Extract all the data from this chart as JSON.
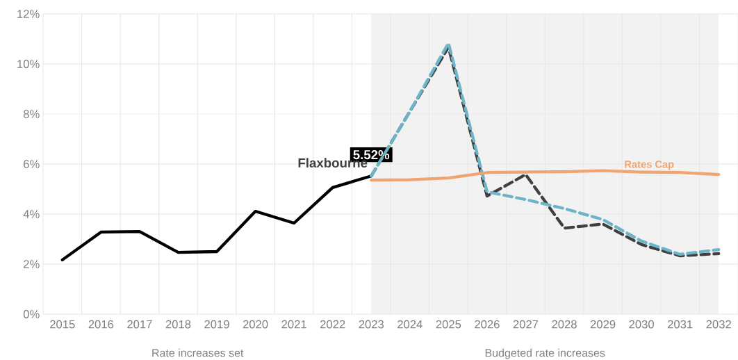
{
  "chart_data": {
    "type": "line",
    "categories": [
      "2015",
      "2016",
      "2017",
      "2018",
      "2019",
      "2020",
      "2021",
      "2022",
      "2023",
      "2024",
      "2025",
      "2026",
      "2027",
      "2028",
      "2029",
      "2030",
      "2031",
      "2032"
    ],
    "series": [
      {
        "color": "#000000",
        "line_style": "solid",
        "values": [
          2.17,
          3.28,
          3.3,
          2.47,
          2.5,
          4.11,
          3.64,
          5.06,
          5.52,
          null,
          null,
          null,
          null,
          null,
          null,
          null,
          null,
          null
        ],
        "value_labels": [
          null,
          null,
          null,
          null,
          null,
          null,
          null,
          null,
          "5.52%",
          null,
          null,
          null,
          null,
          null,
          null,
          null,
          null,
          null
        ]
      },
      {
        "name": "Flaxbourne",
        "color": "#404040",
        "line_style": "dashed",
        "values": [
          null,
          null,
          null,
          null,
          null,
          null,
          null,
          null,
          5.52,
          8.1,
          10.67,
          4.72,
          5.58,
          3.44,
          3.6,
          2.78,
          2.33,
          2.42
        ]
      },
      {
        "color": "#6cb4c8",
        "line_style": "dashed",
        "values": [
          null,
          null,
          null,
          null,
          null,
          null,
          null,
          null,
          5.52,
          8.1,
          10.83,
          4.89,
          4.58,
          4.22,
          3.78,
          2.92,
          2.39,
          2.58
        ]
      },
      {
        "name": "Rates Cap",
        "color": "#f0a470",
        "line_style": "solid",
        "values": [
          null,
          null,
          null,
          null,
          null,
          null,
          null,
          null,
          5.36,
          5.37,
          5.44,
          5.66,
          5.68,
          5.69,
          5.73,
          5.68,
          5.66,
          5.58
        ]
      }
    ],
    "ylim": [
      0,
      12
    ],
    "yticks": [
      {
        "value": 0,
        "label": "0%"
      },
      {
        "value": 2,
        "label": "2%"
      },
      {
        "value": 4,
        "label": "4%"
      },
      {
        "value": 6,
        "label": "6%"
      },
      {
        "value": 8,
        "label": "8%"
      },
      {
        "value": 10,
        "label": "10%"
      },
      {
        "value": 12,
        "label": "12%"
      }
    ],
    "bands": [
      {
        "axis": "x",
        "from": "2023",
        "to": "2032",
        "color": "#f2f2f2"
      }
    ],
    "annotations": [
      "Rate increases set",
      "Budgeted rate increases"
    ],
    "grid": true
  }
}
